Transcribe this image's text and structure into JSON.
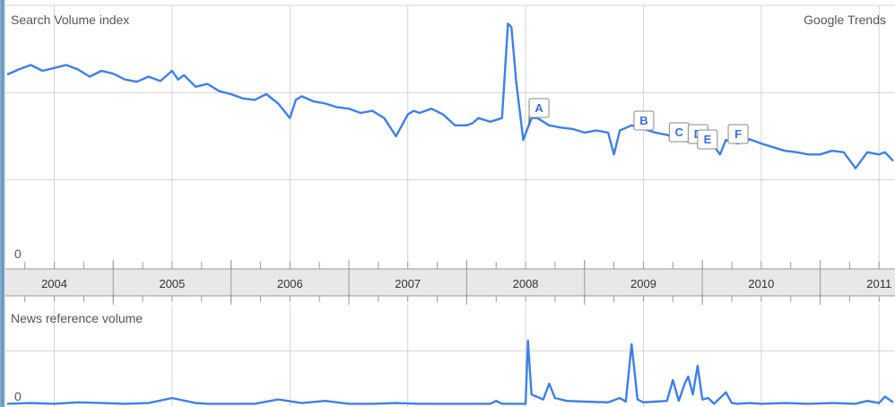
{
  "panel_labels": {
    "search_volume_index": "Search Volume index",
    "google_trends": "Google Trends",
    "news_reference_volume": "News reference volume"
  },
  "colors": {
    "line": "#3f7fe6",
    "grid": "#d4d4d4",
    "axis_band": "#e8e8e8",
    "text": "#555555"
  },
  "chart_data": [
    {
      "type": "line",
      "name": "search-volume",
      "y_tick_labels": [
        {
          "value": 0,
          "label": "0"
        }
      ],
      "x_axis_years": [
        "2004",
        "2005",
        "2006",
        "2007",
        "2008",
        "2009",
        "2010",
        "2011"
      ],
      "xlim": [
        2003.6,
        2011.12
      ],
      "ylim": [
        0,
        3.6
      ],
      "grid": true,
      "series": [
        {
          "x": [
            2003.6,
            2003.7,
            2003.8,
            2003.9,
            2004.0,
            2004.1,
            2004.2,
            2004.3,
            2004.4,
            2004.5,
            2004.6,
            2004.7,
            2004.8,
            2004.9,
            2005.0,
            2005.05,
            2005.1,
            2005.2,
            2005.3,
            2005.4,
            2005.5,
            2005.6,
            2005.7,
            2005.8,
            2005.9,
            2006.0,
            2006.05,
            2006.1,
            2006.2,
            2006.3,
            2006.4,
            2006.5,
            2006.6,
            2006.7,
            2006.8,
            2006.9,
            2007.0,
            2007.05,
            2007.1,
            2007.2,
            2007.3,
            2007.4,
            2007.5,
            2007.55,
            2007.6,
            2007.7,
            2007.8,
            2007.85,
            2007.88,
            2007.92,
            2007.98,
            2008.05,
            2008.1,
            2008.2,
            2008.3,
            2008.4,
            2008.5,
            2008.6,
            2008.7,
            2008.75,
            2008.8,
            2008.9,
            2009.0,
            2009.1,
            2009.2,
            2009.3,
            2009.4,
            2009.5,
            2009.6,
            2009.65,
            2009.7,
            2009.8,
            2009.9,
            2010.0,
            2010.1,
            2010.2,
            2010.3,
            2010.4,
            2010.5,
            2010.6,
            2010.7,
            2010.8,
            2010.9,
            2011.0,
            2011.05,
            2011.12
          ],
          "y": [
            2.65,
            2.72,
            2.78,
            2.7,
            2.74,
            2.78,
            2.72,
            2.62,
            2.7,
            2.66,
            2.58,
            2.55,
            2.62,
            2.56,
            2.7,
            2.58,
            2.64,
            2.48,
            2.52,
            2.42,
            2.38,
            2.32,
            2.3,
            2.38,
            2.25,
            2.05,
            2.3,
            2.35,
            2.28,
            2.25,
            2.2,
            2.18,
            2.12,
            2.15,
            2.05,
            1.8,
            2.1,
            2.15,
            2.12,
            2.18,
            2.1,
            1.95,
            1.95,
            1.98,
            2.05,
            2.0,
            2.05,
            3.35,
            3.3,
            2.55,
            1.75,
            2.05,
            2.05,
            1.95,
            1.92,
            1.9,
            1.85,
            1.88,
            1.85,
            1.55,
            1.88,
            1.95,
            1.9,
            1.85,
            1.82,
            1.76,
            1.72,
            1.7,
            1.66,
            1.55,
            1.75,
            1.7,
            1.76,
            1.7,
            1.65,
            1.6,
            1.58,
            1.55,
            1.55,
            1.6,
            1.58,
            1.36,
            1.58,
            1.55,
            1.58,
            1.46
          ]
        }
      ],
      "annotations": [
        {
          "label": "A",
          "x": 2008.03
        },
        {
          "label": "B",
          "x": 2008.92
        },
        {
          "label": "C",
          "x": 2009.22
        },
        {
          "label": "D",
          "x": 2009.38
        },
        {
          "label": "E",
          "x": 2009.46
        },
        {
          "label": "F",
          "x": 2009.72
        }
      ]
    },
    {
      "type": "line",
      "name": "news-reference-volume",
      "y_tick_labels": [
        {
          "value": 0,
          "label": "0"
        }
      ],
      "xlim": [
        2003.6,
        2011.12
      ],
      "ylim": [
        0,
        1.0
      ],
      "grid": true,
      "series": [
        {
          "x": [
            2003.6,
            2003.8,
            2004.0,
            2004.2,
            2004.4,
            2004.6,
            2004.8,
            2005.0,
            2005.2,
            2005.3,
            2005.5,
            2005.7,
            2005.9,
            2006.1,
            2006.3,
            2006.5,
            2006.7,
            2006.9,
            2007.1,
            2007.3,
            2007.5,
            2007.7,
            2007.75,
            2007.8,
            2007.9,
            2008.0,
            2008.02,
            2008.05,
            2008.15,
            2008.2,
            2008.25,
            2008.35,
            2008.5,
            2008.7,
            2008.8,
            2008.85,
            2008.9,
            2008.95,
            2009.0,
            2009.1,
            2009.2,
            2009.25,
            2009.3,
            2009.35,
            2009.38,
            2009.42,
            2009.46,
            2009.5,
            2009.55,
            2009.6,
            2009.7,
            2009.75,
            2009.8,
            2009.9,
            2010.0,
            2010.2,
            2010.4,
            2010.6,
            2010.8,
            2010.9,
            2011.0,
            2011.05,
            2011.12
          ],
          "y": [
            0.02,
            0.03,
            0.02,
            0.04,
            0.03,
            0.02,
            0.03,
            0.1,
            0.03,
            0.02,
            0.02,
            0.02,
            0.08,
            0.03,
            0.06,
            0.02,
            0.02,
            0.03,
            0.02,
            0.02,
            0.02,
            0.02,
            0.06,
            0.02,
            0.02,
            0.02,
            0.9,
            0.15,
            0.08,
            0.3,
            0.1,
            0.06,
            0.05,
            0.04,
            0.1,
            0.05,
            0.85,
            0.08,
            0.04,
            0.05,
            0.06,
            0.35,
            0.06,
            0.3,
            0.4,
            0.15,
            0.55,
            0.08,
            0.1,
            0.02,
            0.18,
            0.03,
            0.02,
            0.03,
            0.02,
            0.03,
            0.02,
            0.03,
            0.02,
            0.06,
            0.03,
            0.12,
            0.04
          ]
        }
      ]
    }
  ]
}
